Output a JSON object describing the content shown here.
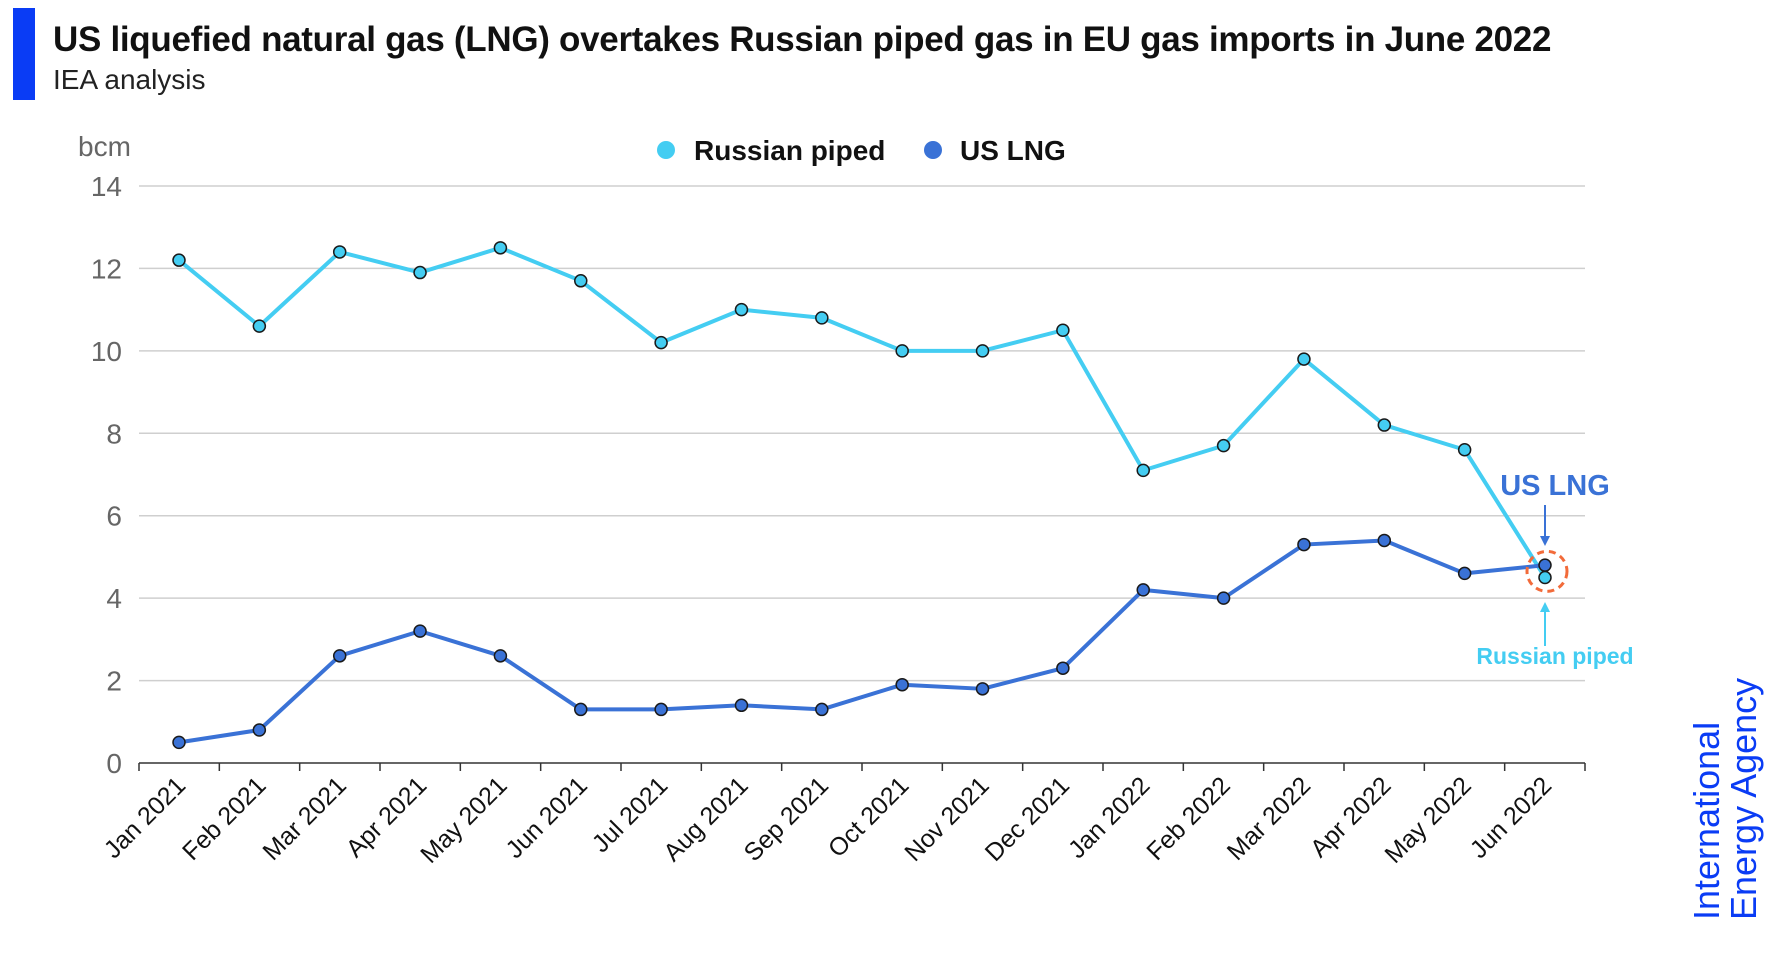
{
  "header": {
    "title": "US liquefied natural gas (LNG) overtakes Russian piped gas in EU gas imports in June 2022",
    "subtitle": "IEA analysis"
  },
  "logo": {
    "line1": "International",
    "line2": "Energy Agency"
  },
  "chart_data": {
    "type": "line",
    "title": "US liquefied natural gas (LNG) overtakes Russian piped gas in EU gas imports in June 2022",
    "ylabel": "bcm",
    "xlabel": "",
    "ylim": [
      0,
      14
    ],
    "yticks": [
      0,
      2,
      4,
      6,
      8,
      10,
      12,
      14
    ],
    "grid": true,
    "legend_position": "top-center",
    "categories": [
      "Jan 2021",
      "Feb 2021",
      "Mar 2021",
      "Apr 2021",
      "May 2021",
      "Jun 2021",
      "Jul 2021",
      "Aug 2021",
      "Sep 2021",
      "Oct 2021",
      "Nov 2021",
      "Dec 2021",
      "Jan 2022",
      "Feb 2022",
      "Mar 2022",
      "Apr 2022",
      "May 2022",
      "Jun 2022"
    ],
    "series": [
      {
        "name": "Russian piped",
        "color": "#44cdf2",
        "values": [
          12.2,
          10.6,
          12.4,
          11.9,
          12.5,
          11.7,
          10.2,
          11.0,
          10.8,
          10.0,
          10.0,
          10.5,
          7.1,
          7.7,
          9.8,
          8.2,
          7.6,
          4.5
        ]
      },
      {
        "name": "US LNG",
        "color": "#3a72d6",
        "values": [
          0.5,
          0.8,
          2.6,
          3.2,
          2.6,
          1.3,
          1.3,
          1.4,
          1.3,
          1.9,
          1.8,
          2.3,
          4.2,
          4.0,
          5.3,
          5.4,
          4.6,
          4.8
        ]
      }
    ],
    "annotations": [
      {
        "text": "US LNG",
        "color": "#3a72d6"
      },
      {
        "text": "Russian piped",
        "color": "#44cdf2"
      }
    ],
    "highlight_color": "#f26b3a"
  }
}
